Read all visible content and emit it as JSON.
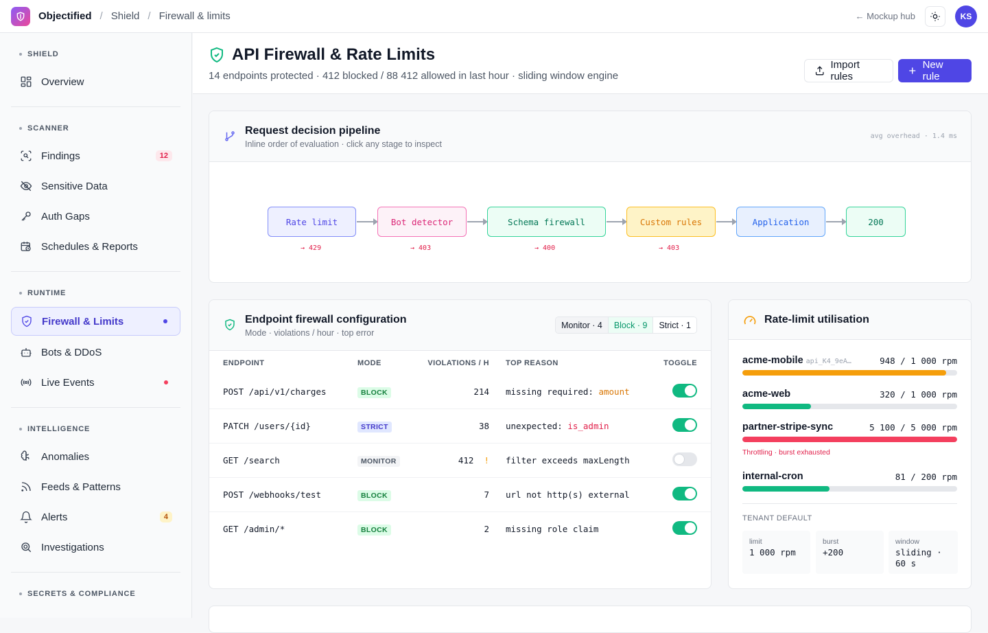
{
  "topbar": {
    "app": "Objectified",
    "crumbs": [
      "Shield",
      "Firewall & limits"
    ],
    "mockup_link": "← Mockup hub",
    "avatar": "KS"
  },
  "sidebar": {
    "sections": [
      {
        "label": "SHIELD",
        "items": [
          {
            "label": "Overview",
            "icon": "grid-icon"
          }
        ]
      },
      {
        "label": "SCANNER",
        "items": [
          {
            "label": "Findings",
            "icon": "scan-icon",
            "badge": "12"
          },
          {
            "label": "Sensitive Data",
            "icon": "eye-off-icon"
          },
          {
            "label": "Auth Gaps",
            "icon": "key-icon"
          },
          {
            "label": "Schedules & Reports",
            "icon": "calendar-clock-icon"
          }
        ]
      },
      {
        "label": "RUNTIME",
        "items": [
          {
            "label": "Firewall & Limits",
            "icon": "shield-icon",
            "active": true
          },
          {
            "label": "Bots & DDoS",
            "icon": "bot-icon"
          },
          {
            "label": "Live Events",
            "icon": "radio-icon"
          }
        ]
      },
      {
        "label": "INTELLIGENCE",
        "items": [
          {
            "label": "Anomalies",
            "icon": "brain-icon"
          },
          {
            "label": "Feeds & Patterns",
            "icon": "rss-icon"
          },
          {
            "label": "Alerts",
            "icon": "bell-icon",
            "badge": "4"
          },
          {
            "label": "Investigations",
            "icon": "search-zoom-icon"
          }
        ]
      },
      {
        "label": "SECRETS & COMPLIANCE",
        "items": []
      }
    ]
  },
  "header": {
    "title": "API Firewall & Rate Limits",
    "subtitle": "14 endpoints protected · 412 blocked / 88 412 allowed in last hour · sliding window engine",
    "import_label": "Import rules",
    "new_label": "New rule"
  },
  "pipeline": {
    "title": "Request decision pipeline",
    "subtitle": "Inline order of evaluation · click any stage to inspect",
    "meta": "avg overhead · 1.4 ms",
    "stages": [
      {
        "label": "Rate limit",
        "code": "→ 429"
      },
      {
        "label": "Bot detector",
        "code": "→ 403"
      },
      {
        "label": "Schema firewall",
        "code": "→ 400"
      },
      {
        "label": "Custom rules",
        "code": "→ 403"
      },
      {
        "label": "Application",
        "code": ""
      },
      {
        "label": "200",
        "code": ""
      }
    ]
  },
  "endpoints": {
    "title": "Endpoint firewall configuration",
    "subtitle": "Mode · violations / hour · top error",
    "seg": [
      "Monitor · 4",
      "Block · 9",
      "Strict · 1"
    ],
    "columns": [
      "ENDPOINT",
      "MODE",
      "VIOLATIONS / H",
      "TOP REASON",
      "TOGGLE"
    ],
    "rows": [
      {
        "endpoint": "POST /api/v1/charges",
        "mode": "BLOCK",
        "violations": "214",
        "warn": "",
        "reason": "missing required: ",
        "reason_hl": "amount",
        "on": true
      },
      {
        "endpoint": "PATCH /users/{id}",
        "mode": "STRICT",
        "violations": "38",
        "warn": "",
        "reason": "unexpected: ",
        "reason_hl": "is_admin",
        "on": true
      },
      {
        "endpoint": "GET /search",
        "mode": "MONITOR",
        "violations": "412",
        "warn": "!",
        "reason": "filter exceeds maxLength",
        "reason_hl": "",
        "on": false
      },
      {
        "endpoint": "POST /webhooks/test",
        "mode": "BLOCK",
        "violations": "7",
        "warn": "",
        "reason": "url not http(s) external",
        "reason_hl": "",
        "on": true
      },
      {
        "endpoint": "GET /admin/*",
        "mode": "BLOCK",
        "violations": "2",
        "warn": "",
        "reason": "missing role claim",
        "reason_hl": "",
        "on": true
      }
    ]
  },
  "ratelimit": {
    "title": "Rate-limit utilisation",
    "items": [
      {
        "name": "acme-mobile",
        "key": "api_K4_9eA…",
        "value": "948 / 1 000 rpm",
        "used": 0.948,
        "color": "#f59e0b"
      },
      {
        "name": "acme-web",
        "key": "",
        "value": "320 / 1 000 rpm",
        "used": 0.32,
        "color": "#10b981"
      },
      {
        "name": "partner-stripe-sync",
        "key": "",
        "value": "5 100 / 5 000 rpm",
        "used": 1.0,
        "color": "#f43f5e"
      },
      {
        "name": "internal-cron",
        "key": "",
        "value": "81 / 200 rpm",
        "used": 0.405,
        "color": "#10b981"
      }
    ],
    "warning": "Throttling · burst exhausted",
    "tenant_label": "TENANT DEFAULT",
    "tenant": [
      {
        "label": "limit",
        "value": "1 000 rpm"
      },
      {
        "label": "burst",
        "value": "+200"
      },
      {
        "label": "window",
        "value": "sliding · 60 s"
      }
    ]
  }
}
